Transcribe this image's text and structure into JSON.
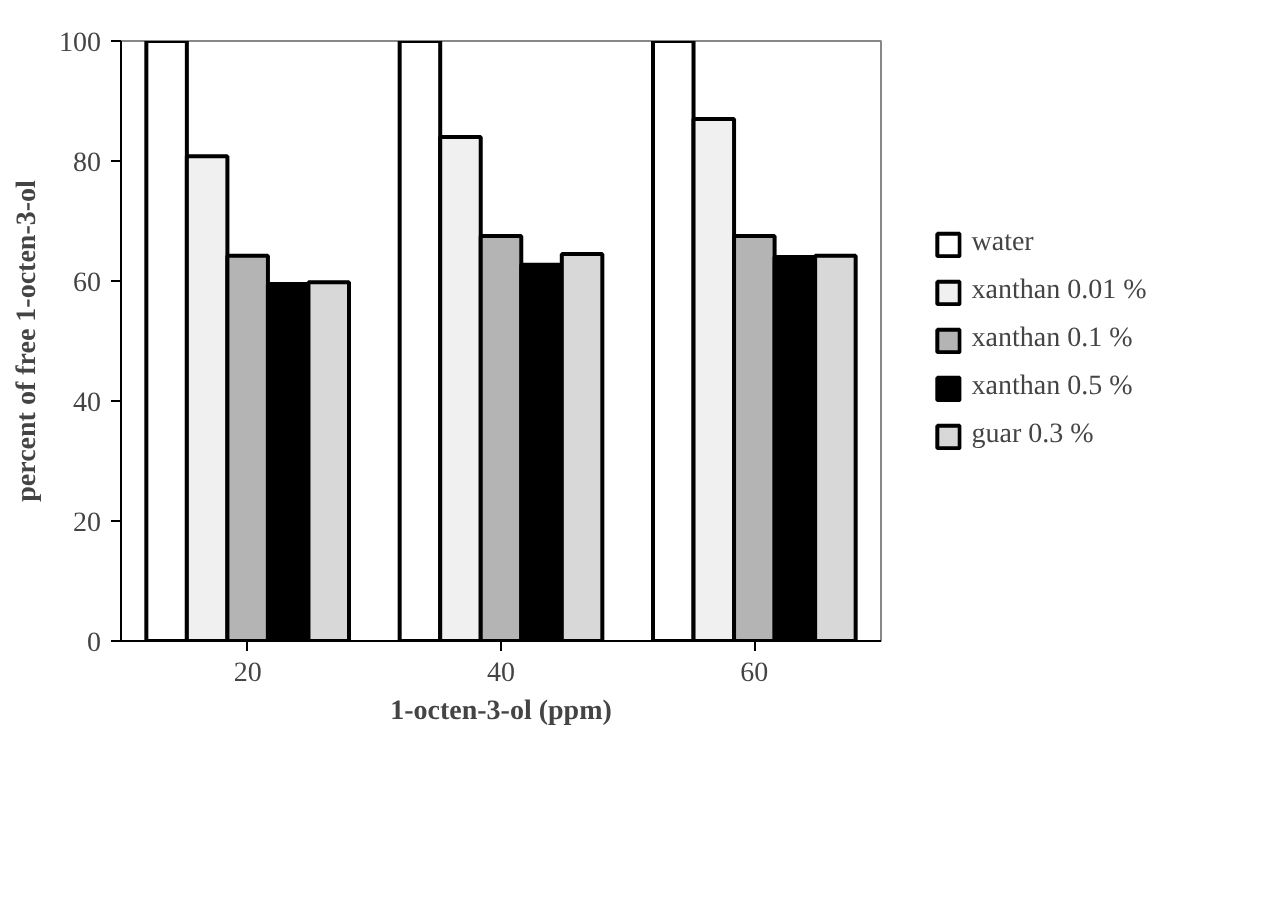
{
  "chart_data": {
    "type": "bar",
    "xlabel": "1-octen-3-ol (ppm)",
    "ylabel": "percent of free 1-octen-3-ol",
    "categories": [
      "20",
      "40",
      "60"
    ],
    "series": [
      {
        "name": "water",
        "color": "#ffffff",
        "values": [
          100,
          100,
          100
        ]
      },
      {
        "name": "xanthan 0.01 %",
        "color": "#f0f0f0",
        "values": [
          80.8,
          84,
          87
        ]
      },
      {
        "name": "xanthan 0.1 %",
        "color": "#b4b4b4",
        "values": [
          64.2,
          67.5,
          67.5
        ]
      },
      {
        "name": "xanthan 0.5 %",
        "color": "#000000",
        "values": [
          59.5,
          62.7,
          64
        ]
      },
      {
        "name": "guar 0.3 %",
        "color": "#d8d8d8",
        "values": [
          59.8,
          64.5,
          64.2
        ]
      }
    ],
    "ylim": [
      0,
      100
    ],
    "yticks": [
      0,
      20,
      40,
      60,
      80,
      100
    ],
    "grid": false,
    "legend": "right"
  }
}
